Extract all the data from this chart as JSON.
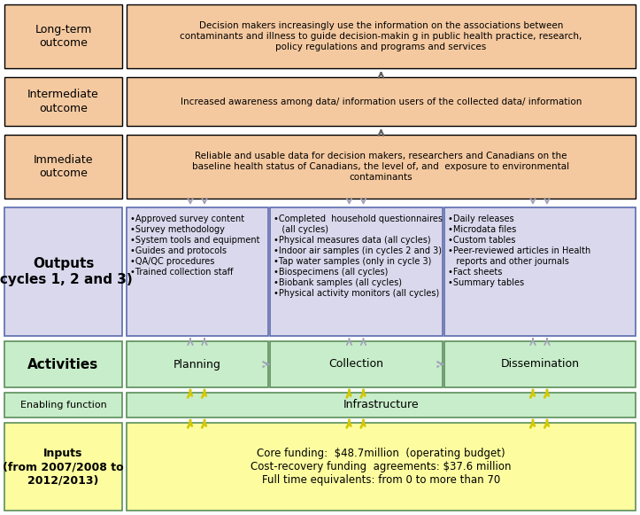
{
  "fig_width": 7.23,
  "fig_height": 5.81,
  "dpi": 100,
  "bg_color": "#ffffff",
  "outcome_box_color": "#F5C9A0",
  "outcome_border": "#000000",
  "output_box_color": "#DAD8EC",
  "output_border": "#5B6BAE",
  "activity_box_color": "#C8EDCA",
  "activity_border": "#5B8F5B",
  "enabling_box_color": "#C8EDCA",
  "enabling_border": "#5B8F5B",
  "input_box_color": "#FDFDA0",
  "input_border": "#5B8F5B",
  "long_term_text": "Long-term\noutcome",
  "intermediate_text": "Intermediate\noutcome",
  "immediate_text": "Immediate\noutcome",
  "long_term_content": "Decision makers increasingly use the information on the associations between\ncontaminants and illness to guide decision-makin g in public health practice, research,\npolicy regulations and programs and services",
  "intermediate_content": "Increased awareness among data/ information users of the collected data/ information",
  "immediate_content": "Reliable and usable data for decision makers, researchers and Canadians on the\nbaseline health status of Canadians, the level of, and  exposure to environmental\ncontaminants",
  "outputs_label": "Outputs\n(cycles 1, 2 and 3)",
  "planning_content": "•Approved survey content\n•Survey methodology\n•System tools and equipment\n•Guides and protocols\n•QA/QC procedures\n•Trained collection staff",
  "collection_content": "•Completed  household questionnaires\n   (all cycles)\n•Physical measures data (all cycles)\n•Indoor air samples (in cycles 2 and 3)\n•Tap water samples (only in cycle 3)\n•Biospecimens (all cycles)\n•Biobank samples (all cycles)\n•Physical activity monitors (all cycles)",
  "dissemination_content": "•Daily releases\n•Microdata files\n•Custom tables\n•Peer-reviewed articles in Health\n   reports and other journals\n•Fact sheets\n•Summary tables",
  "activities_label": "Activities",
  "planning_label": "Planning",
  "collection_label": "Collection",
  "dissemination_label": "Dissemination",
  "enabling_label": "Enabling function",
  "infrastructure_label": "Infrastructure",
  "inputs_label": "Inputs\n(from 2007/2008 to\n2012/2013)",
  "inputs_content": "Core funding:  $48.7million  (operating budget)\nCost-recovery funding  agreements: $37.6 million\nFull time equivalents: from 0 to more than 70",
  "arrow_gray": "#A0A0B8",
  "arrow_yellow": "#D4C800",
  "arrow_dark": "#606060"
}
